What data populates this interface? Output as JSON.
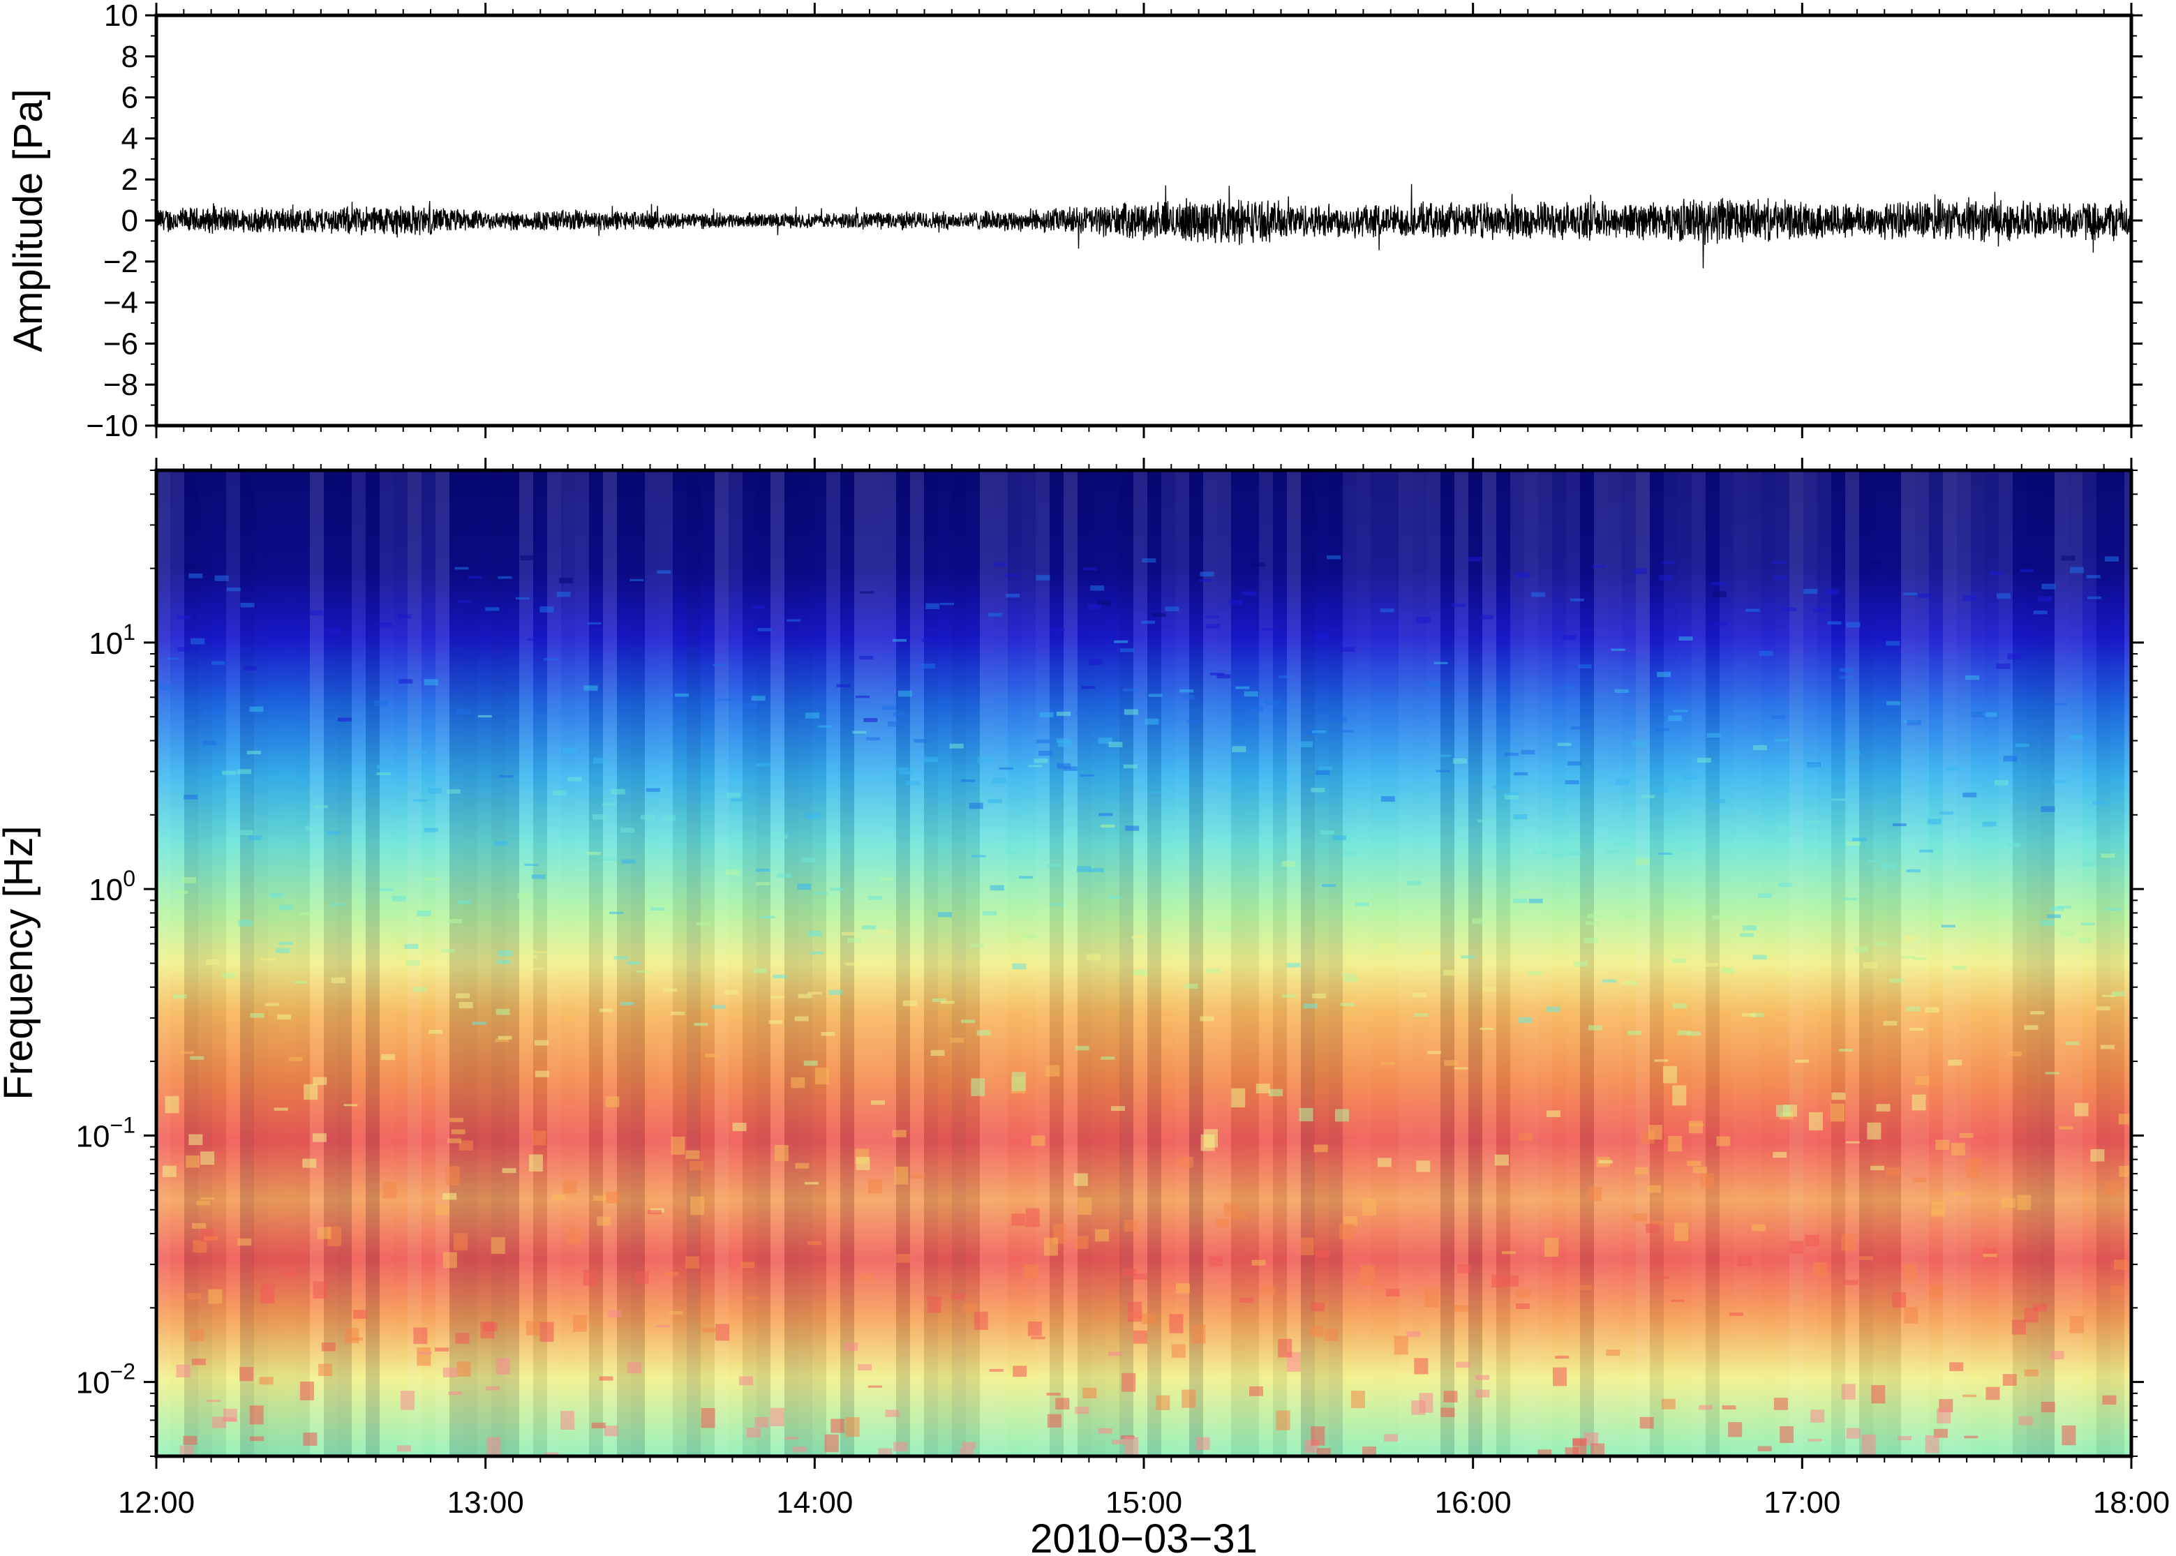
{
  "chart_data": [
    {
      "type": "line",
      "panel": "waveform",
      "ylabel": "Amplitude [Pa]",
      "ylim": [
        -10,
        10
      ],
      "yticks": [
        10,
        8,
        6,
        4,
        2,
        0,
        -2,
        -4,
        -6,
        -8,
        -10
      ],
      "ytick_labels": [
        "10",
        "8",
        "6",
        "4",
        "2",
        "0",
        "−2",
        "−4",
        "−6",
        "−8",
        "−10"
      ],
      "xlim": [
        "12:00",
        "18:00"
      ],
      "grid": false,
      "line_color": "#000000",
      "series": [
        {
          "x": [
            "12:00",
            "12:15",
            "12:30",
            "12:45",
            "13:00",
            "13:15",
            "13:30",
            "13:45",
            "14:00",
            "14:15",
            "14:30",
            "14:45",
            "15:00",
            "15:15",
            "15:30",
            "15:45",
            "16:00",
            "16:15",
            "16:30",
            "16:45",
            "17:00",
            "17:15",
            "17:30",
            "17:45",
            "18:00"
          ],
          "envelope_pa": [
            0.7,
            0.7,
            0.7,
            0.9,
            0.5,
            0.6,
            0.5,
            0.4,
            0.4,
            0.5,
            0.5,
            0.7,
            1.0,
            1.3,
            0.9,
            0.9,
            1.0,
            1.0,
            1.0,
            1.3,
            1.0,
            1.0,
            1.2,
            1.0,
            1.1
          ]
        }
      ]
    },
    {
      "type": "heatmap",
      "panel": "spectrogram",
      "ylabel": "Frequency [Hz]",
      "xlabel": "2010−03−31",
      "y_scale": "log",
      "ylim_hz": [
        0.005,
        50
      ],
      "yticks": [
        0.01,
        0.1,
        1,
        10
      ],
      "ytick_labels": [
        {
          "base": "10",
          "exp": "−2"
        },
        {
          "base": "10",
          "exp": "−1"
        },
        {
          "base": "10",
          "exp": "0"
        },
        {
          "base": "10",
          "exp": "1"
        }
      ],
      "xticks": [
        "12:00",
        "13:00",
        "14:00",
        "15:00",
        "16:00",
        "17:00",
        "18:00"
      ],
      "colormap": [
        "#0a0a78",
        "#1a1ad0",
        "#1f6fe8",
        "#38b6f0",
        "#6de6d8",
        "#b4f5a0",
        "#f1f08a",
        "#f7b85a",
        "#f4874a",
        "#f05a55",
        "#f78a90"
      ],
      "grid": false
    }
  ]
}
